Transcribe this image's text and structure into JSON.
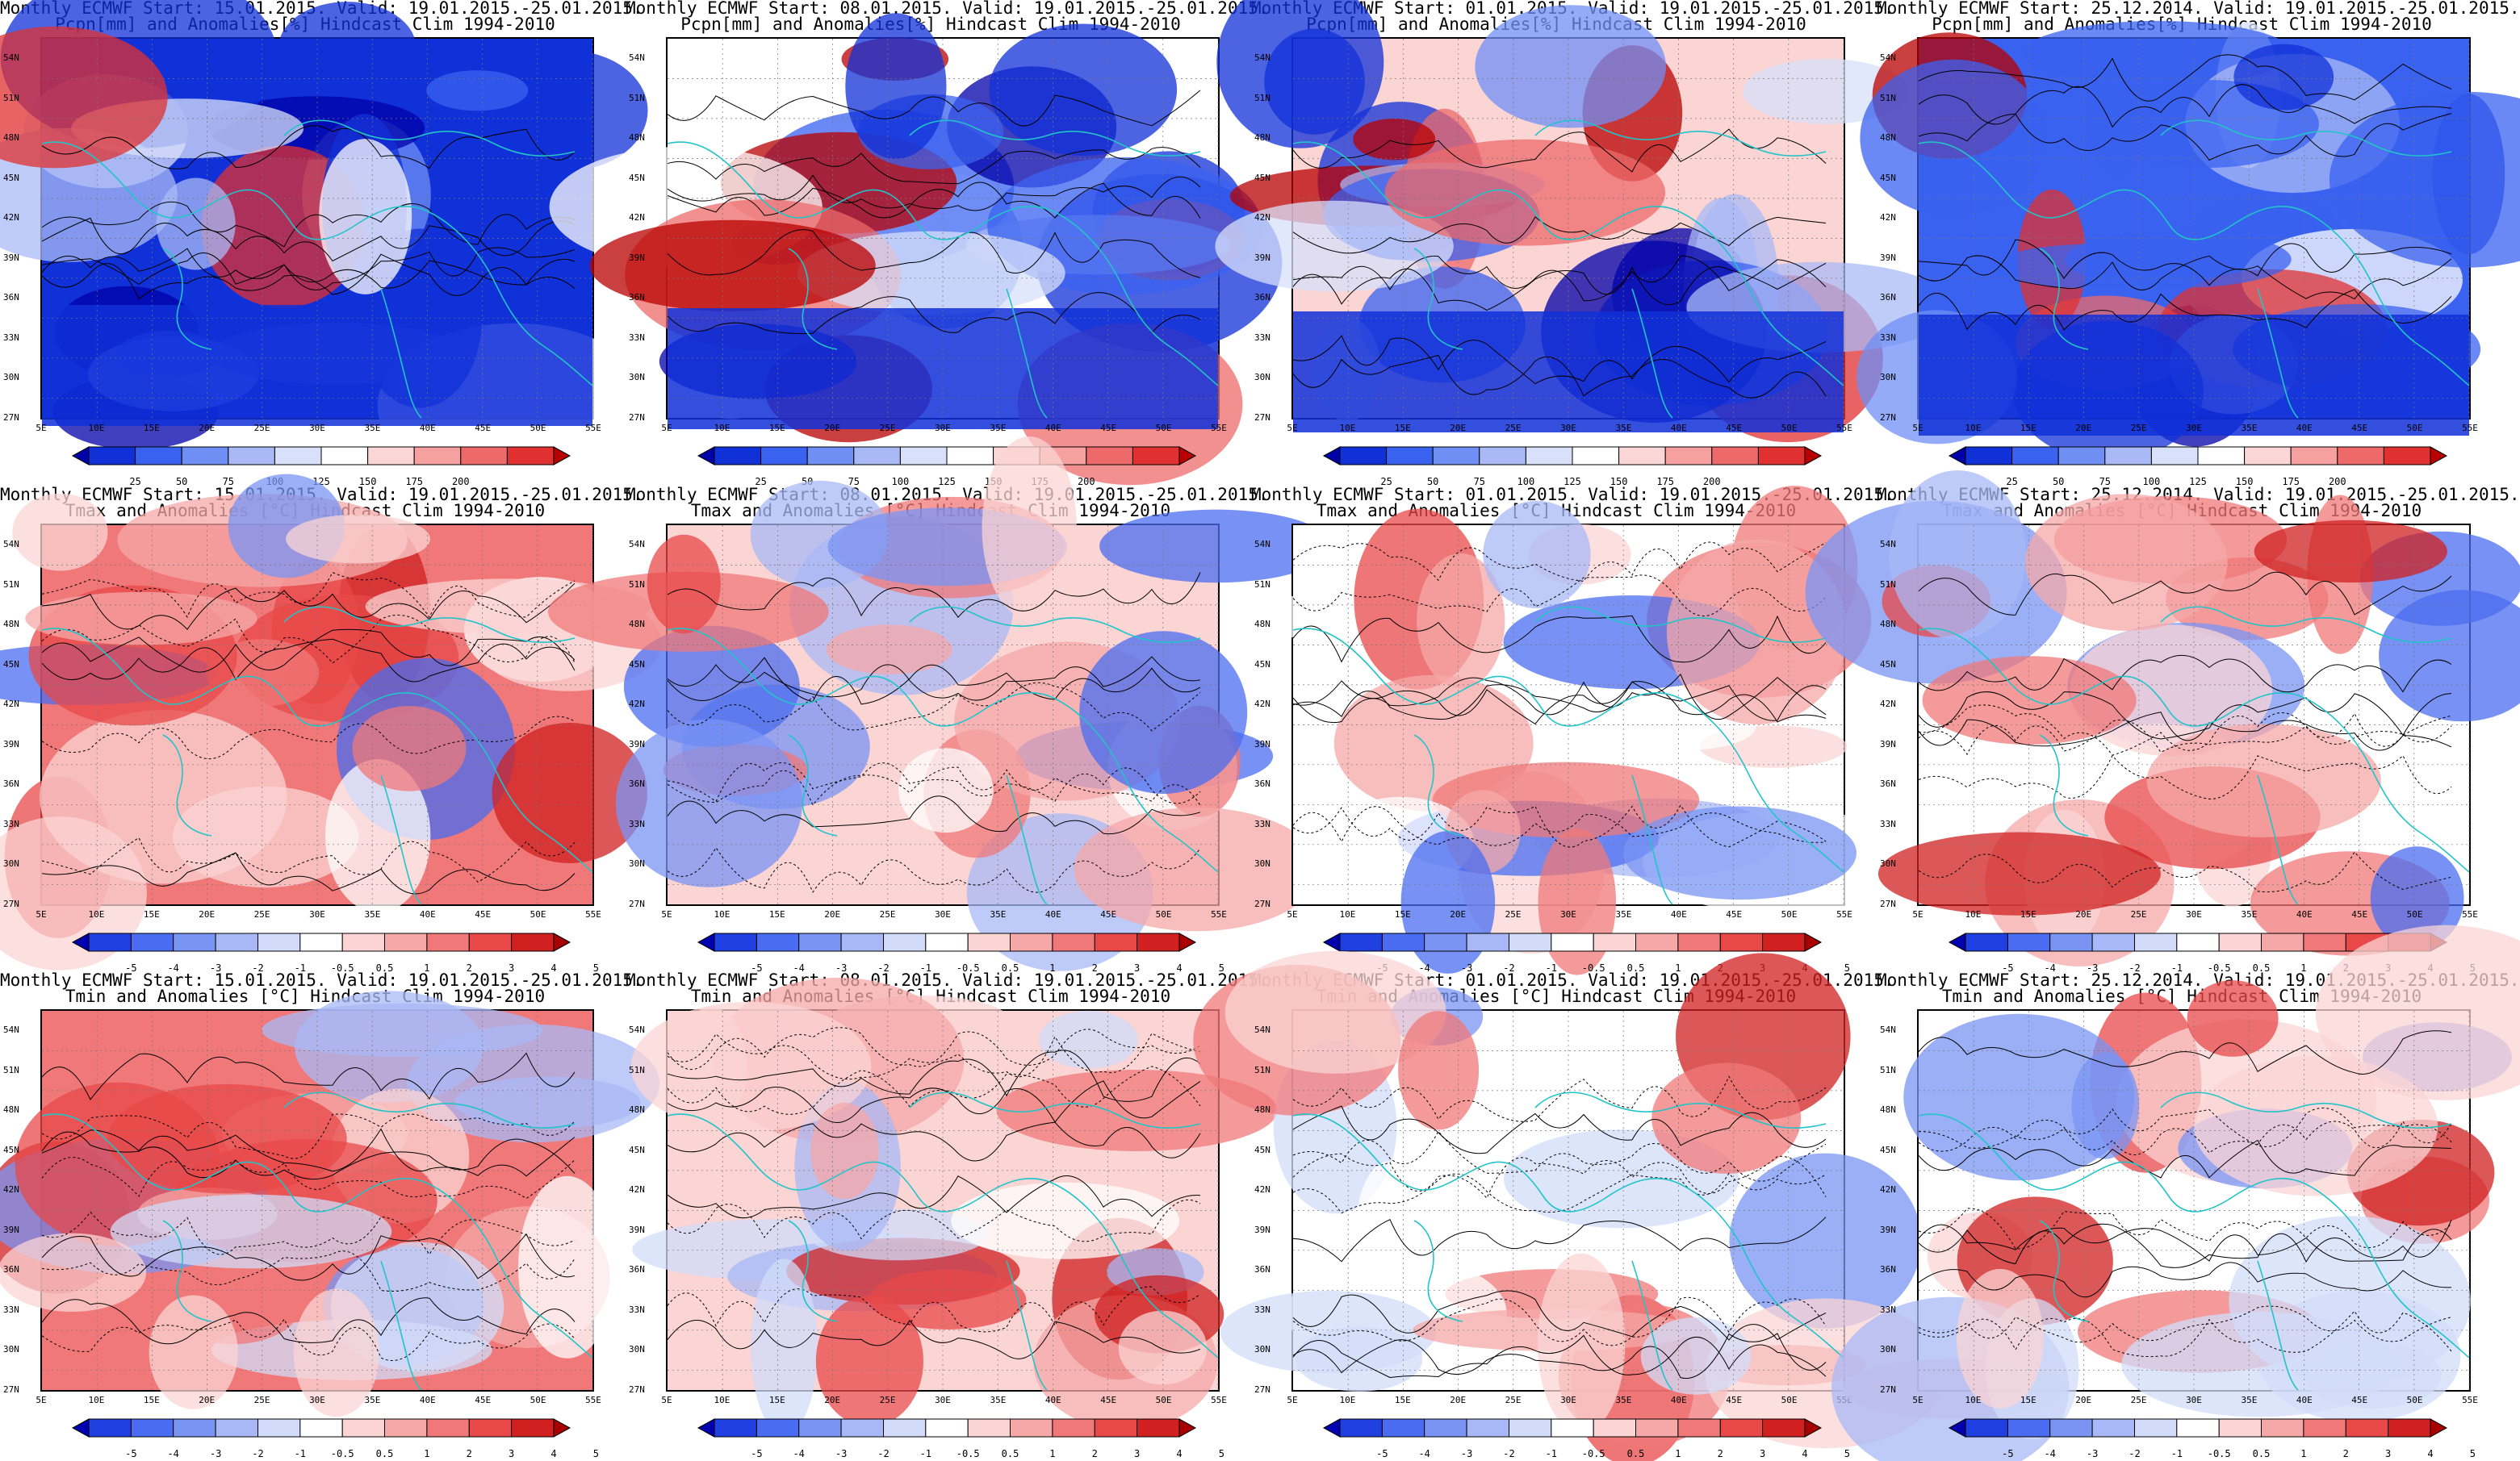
{
  "row_titles": [
    "Pcpn[mm] and Anomalies[%] Hindcast Clim 1994-2010",
    "Tmax and Anomalies [°C] Hindcast Clim 1994-2010",
    "Tmin and Anomalies [°C] Hindcast Clim 1994-2010"
  ],
  "column_titles": [
    "Monthly ECMWF Start: 15.01.2015. Valid: 19.01.2015.-25.01.2015.",
    "Monthly ECMWF Start: 08.01.2015. Valid: 19.01.2015.-25.01.2015.",
    "Monthly ECMWF Start: 01.01.2015. Valid: 19.01.2015.-25.01.2015.",
    "Monthly ECMWF Start: 25.12.2014. Valid: 19.01.2015.-25.01.2015."
  ],
  "lat_ticks": [
    "54N",
    "51N",
    "48N",
    "45N",
    "42N",
    "39N",
    "36N",
    "33N",
    "30N",
    "27N"
  ],
  "lon_ticks": [
    "5E",
    "10E",
    "15E",
    "20E",
    "25E",
    "30E",
    "35E",
    "40E",
    "45E",
    "50E",
    "55E"
  ],
  "precip_colorbar": {
    "labels": [
      "25",
      "50",
      "75",
      "100",
      "125",
      "150",
      "175",
      "200"
    ],
    "colors": [
      "#0000a8",
      "#1030d8",
      "#3a62f0",
      "#6f8ff5",
      "#a9b9f6",
      "#d8e0fa",
      "#ffffff",
      "#fbd6d6",
      "#f6a0a0",
      "#ee6a6a",
      "#e03030",
      "#b80000"
    ]
  },
  "temp_colorbar": {
    "labels": [
      "-5",
      "-4",
      "-3",
      "-2",
      "-1",
      "-0.5",
      "0.5",
      "1",
      "2",
      "3",
      "4",
      "5"
    ],
    "colors": [
      "#0000b0",
      "#1f3fe0",
      "#4a6cf0",
      "#7a94f4",
      "#a8b8f6",
      "#d2dcfa",
      "#ffffff",
      "#fbd4d4",
      "#f6a8a8",
      "#f07878",
      "#e84848",
      "#d02020",
      "#a80000"
    ]
  },
  "colors": {
    "coast": "#22c4c8",
    "contour": "#000000"
  }
}
